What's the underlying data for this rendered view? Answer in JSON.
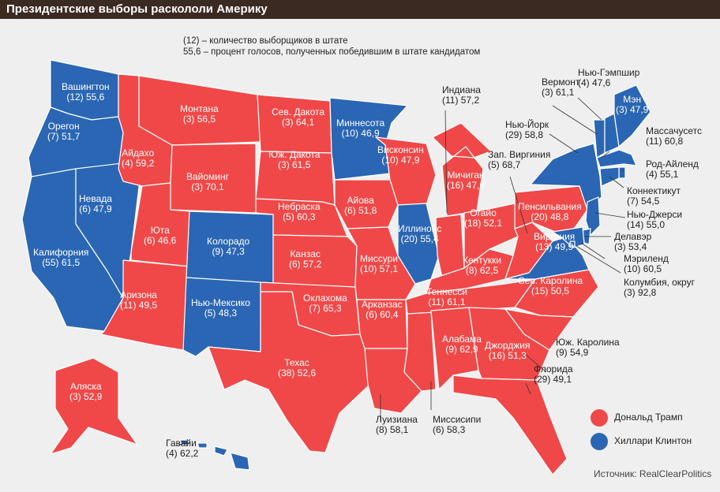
{
  "title": "Президентские выборы раскололи Америку",
  "notes": [
    "(12) – количество выборщиков в штате",
    "55,6 – процент голосов, полученных победившим в штате кандидатом"
  ],
  "legend": [
    {
      "party": "trump",
      "label": "Дональд Трамп",
      "color": "#f04848"
    },
    {
      "party": "clinton",
      "label": "Хиллари Клинтон",
      "color": "#2a66b3"
    }
  ],
  "source": "Источник: RealClearPolitics",
  "states": [
    {
      "key": "wa",
      "name": "Вашингтон",
      "ev": "(12)",
      "pct": "55,6",
      "winner": "clinton"
    },
    {
      "key": "or",
      "name": "Орегон",
      "ev": "(7)",
      "pct": "51,7",
      "winner": "clinton"
    },
    {
      "key": "ca",
      "name": "Калифорния",
      "ev": "(55)",
      "pct": "61,5",
      "winner": "clinton"
    },
    {
      "key": "nv",
      "name": "Невада",
      "ev": "(6)",
      "pct": "47,9",
      "winner": "clinton"
    },
    {
      "key": "id",
      "name": "Айдахо",
      "ev": "(4)",
      "pct": "59,2",
      "winner": "trump"
    },
    {
      "key": "mt",
      "name": "Монтана",
      "ev": "(3)",
      "pct": "56,5",
      "winner": "trump"
    },
    {
      "key": "wy",
      "name": "Вайоминг",
      "ev": "(3)",
      "pct": "70,1",
      "winner": "trump"
    },
    {
      "key": "ut",
      "name": "Юта",
      "ev": "(6)",
      "pct": "46,6",
      "winner": "trump"
    },
    {
      "key": "az",
      "name": "Аризона",
      "ev": "(11)",
      "pct": "49,5",
      "winner": "trump"
    },
    {
      "key": "co",
      "name": "Колорадо",
      "ev": "(9)",
      "pct": "47,3",
      "winner": "clinton"
    },
    {
      "key": "nm",
      "name": "Нью-Мексико",
      "ev": "(5)",
      "pct": "48,3",
      "winner": "clinton"
    },
    {
      "key": "nd",
      "name": "Сев. Дакота",
      "ev": "(3)",
      "pct": "64,1",
      "winner": "trump"
    },
    {
      "key": "sd",
      "name": "Юж. Дакота",
      "ev": "(3)",
      "pct": "61,5",
      "winner": "trump"
    },
    {
      "key": "ne",
      "name": "Небраска",
      "ev": "(5)",
      "pct": "60,3",
      "winner": "trump"
    },
    {
      "key": "ks",
      "name": "Канзас",
      "ev": "(6)",
      "pct": "57,2",
      "winner": "trump"
    },
    {
      "key": "ok",
      "name": "Оклахома",
      "ev": "(7)",
      "pct": "65,3",
      "winner": "trump"
    },
    {
      "key": "tx",
      "name": "Техас",
      "ev": "(38)",
      "pct": "52,6",
      "winner": "trump"
    },
    {
      "key": "mn",
      "name": "Миннесота",
      "ev": "(10)",
      "pct": "46,9",
      "winner": "clinton"
    },
    {
      "key": "ia",
      "name": "Айова",
      "ev": "(6)",
      "pct": "51,8",
      "winner": "trump"
    },
    {
      "key": "mo",
      "name": "Миссури",
      "ev": "(10)",
      "pct": "57,1",
      "winner": "trump"
    },
    {
      "key": "ar",
      "name": "Арканзас",
      "ev": "(6)",
      "pct": "60,4",
      "winner": "trump"
    },
    {
      "key": "la",
      "name": "Луизиана",
      "ev": "(8)",
      "pct": "58,1",
      "winner": "trump"
    },
    {
      "key": "wi",
      "name": "Висконсин",
      "ev": "(10)",
      "pct": "47,9",
      "winner": "trump"
    },
    {
      "key": "il",
      "name": "Иллинойс",
      "ev": "(20)",
      "pct": "55,4",
      "winner": "clinton"
    },
    {
      "key": "ms",
      "name": "Миссисипи",
      "ev": "(6)",
      "pct": "58,3",
      "winner": "trump"
    },
    {
      "key": "mi",
      "name": "Мичиган",
      "ev": "(16)",
      "pct": "47,6",
      "winner": "trump"
    },
    {
      "key": "in",
      "name": "Индиана",
      "ev": "(11)",
      "pct": "57,2",
      "winner": "trump"
    },
    {
      "key": "ky",
      "name": "Кентукки",
      "ev": "(8)",
      "pct": "62,5",
      "winner": "trump"
    },
    {
      "key": "tn",
      "name": "Теннесси",
      "ev": "(11)",
      "pct": "61,1",
      "winner": "trump"
    },
    {
      "key": "al",
      "name": "Алабама",
      "ev": "(9)",
      "pct": "62,9",
      "winner": "trump"
    },
    {
      "key": "oh",
      "name": "Огайо",
      "ev": "(18)",
      "pct": "52,1",
      "winner": "trump"
    },
    {
      "key": "wv",
      "name": "Зап. Виргиния",
      "ev": "(5)",
      "pct": "68,7",
      "winner": "trump"
    },
    {
      "key": "va",
      "name": "Виргиния",
      "ev": "(13)",
      "pct": "49,9",
      "winner": "clinton"
    },
    {
      "key": "nc",
      "name": "Сев. Каролина",
      "ev": "(15)",
      "pct": "50,5",
      "winner": "trump"
    },
    {
      "key": "sc",
      "name": "Юж. Каролина",
      "ev": "(9)",
      "pct": "54,9",
      "winner": "trump"
    },
    {
      "key": "ga",
      "name": "Джорджия",
      "ev": "(16)",
      "pct": "51,3",
      "winner": "trump"
    },
    {
      "key": "fl",
      "name": "Флорида",
      "ev": "(29)",
      "pct": "49,1",
      "winner": "trump"
    },
    {
      "key": "pa",
      "name": "Пенсильвания",
      "ev": "(20)",
      "pct": "48,8",
      "winner": "trump"
    },
    {
      "key": "ny",
      "name": "Нью-Йорк",
      "ev": "(29)",
      "pct": "58,8",
      "winner": "clinton"
    },
    {
      "key": "vt",
      "name": "Вермонт",
      "ev": "(3)",
      "pct": "61,1",
      "winner": "clinton"
    },
    {
      "key": "nh",
      "name": "Нью-Гэмпшир",
      "ev": "(4)",
      "pct": "47,6",
      "winner": "clinton"
    },
    {
      "key": "me",
      "name": "Мэн",
      "ev": "(3)",
      "pct": "47,9",
      "winner": "clinton"
    },
    {
      "key": "ma",
      "name": "Массачусетс",
      "ev": "(11)",
      "pct": "60,8",
      "winner": "clinton"
    },
    {
      "key": "ri",
      "name": "Род-Айленд",
      "ev": "(4)",
      "pct": "55,1",
      "winner": "clinton"
    },
    {
      "key": "ct",
      "name": "Коннектикут",
      "ev": "(7)",
      "pct": "54,5",
      "winner": "clinton"
    },
    {
      "key": "nj",
      "name": "Нью-Джерси",
      "ev": "(14)",
      "pct": "55,0",
      "winner": "clinton"
    },
    {
      "key": "de",
      "name": "Делавэр",
      "ev": "(3)",
      "pct": "53,4",
      "winner": "clinton"
    },
    {
      "key": "md",
      "name": "Мэриленд",
      "ev": "(10)",
      "pct": "60,5",
      "winner": "clinton"
    },
    {
      "key": "dc",
      "name": "Колумбия, округ",
      "ev": "(3)",
      "pct": "92,8",
      "winner": "clinton"
    },
    {
      "key": "ak",
      "name": "Аляска",
      "ev": "(3)",
      "pct": "52,9",
      "winner": "trump"
    },
    {
      "key": "hi",
      "name": "Гавайи",
      "ev": "(4)",
      "pct": "62,2",
      "winner": "clinton"
    }
  ]
}
